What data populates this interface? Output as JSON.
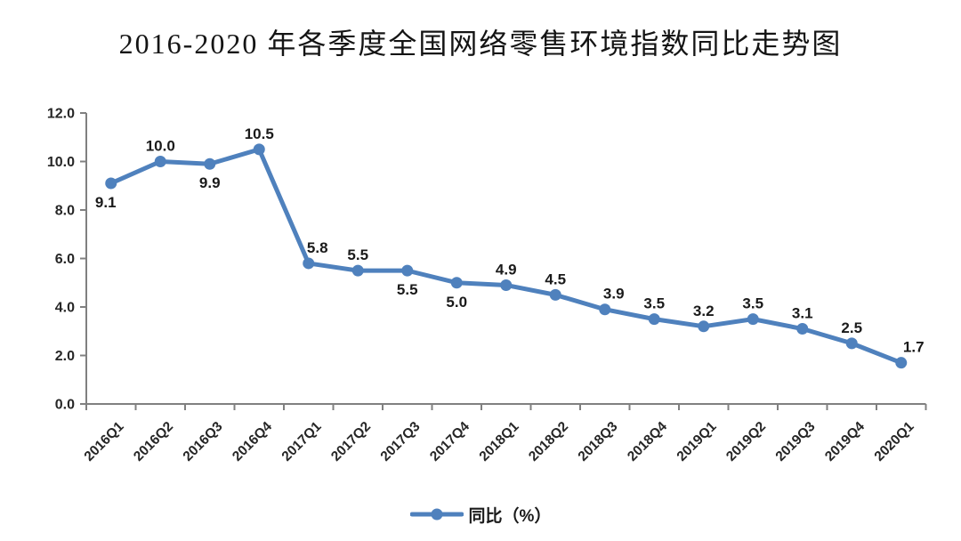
{
  "chart_data": {
    "type": "line",
    "title": "2016-2020 年各季度全国网络零售环境指数同比走势图",
    "categories": [
      "2016Q1",
      "2016Q2",
      "2016Q3",
      "2016Q4",
      "2017Q1",
      "2017Q2",
      "2017Q3",
      "2017Q4",
      "2018Q1",
      "2018Q2",
      "2018Q3",
      "2018Q4",
      "2019Q1",
      "2019Q2",
      "2019Q3",
      "2019Q4",
      "2020Q1"
    ],
    "series": [
      {
        "name": "同比（%）",
        "values": [
          9.1,
          10.0,
          9.9,
          10.5,
          5.8,
          5.5,
          5.5,
          5.0,
          4.9,
          4.5,
          3.9,
          3.5,
          3.2,
          3.5,
          3.1,
          2.5,
          1.7
        ],
        "color": "#4F81BD"
      }
    ],
    "data_labels": [
      "9.1",
      "10.0",
      "9.9",
      "10.5",
      "5.8",
      "5.5",
      "5.5",
      "5.0",
      "4.9",
      "4.5",
      "3.9",
      "3.5",
      "3.2",
      "3.5",
      "3.1",
      "2.5",
      "1.7"
    ],
    "label_positions": [
      "below",
      "above",
      "below",
      "above",
      "above",
      "above",
      "below",
      "below",
      "above",
      "above",
      "above",
      "above",
      "above",
      "above",
      "above",
      "above",
      "above"
    ],
    "xlabel": "",
    "ylabel": "",
    "ylim": [
      0,
      12
    ],
    "ytick_step": 2,
    "ytick_labels": [
      "0.0",
      "2.0",
      "4.0",
      "6.0",
      "8.0",
      "10.0",
      "12.0"
    ],
    "grid": false,
    "legend_position": "bottom",
    "x_label_rotation_deg": -45,
    "axis_color": "#808080",
    "text_color": "#262626"
  }
}
